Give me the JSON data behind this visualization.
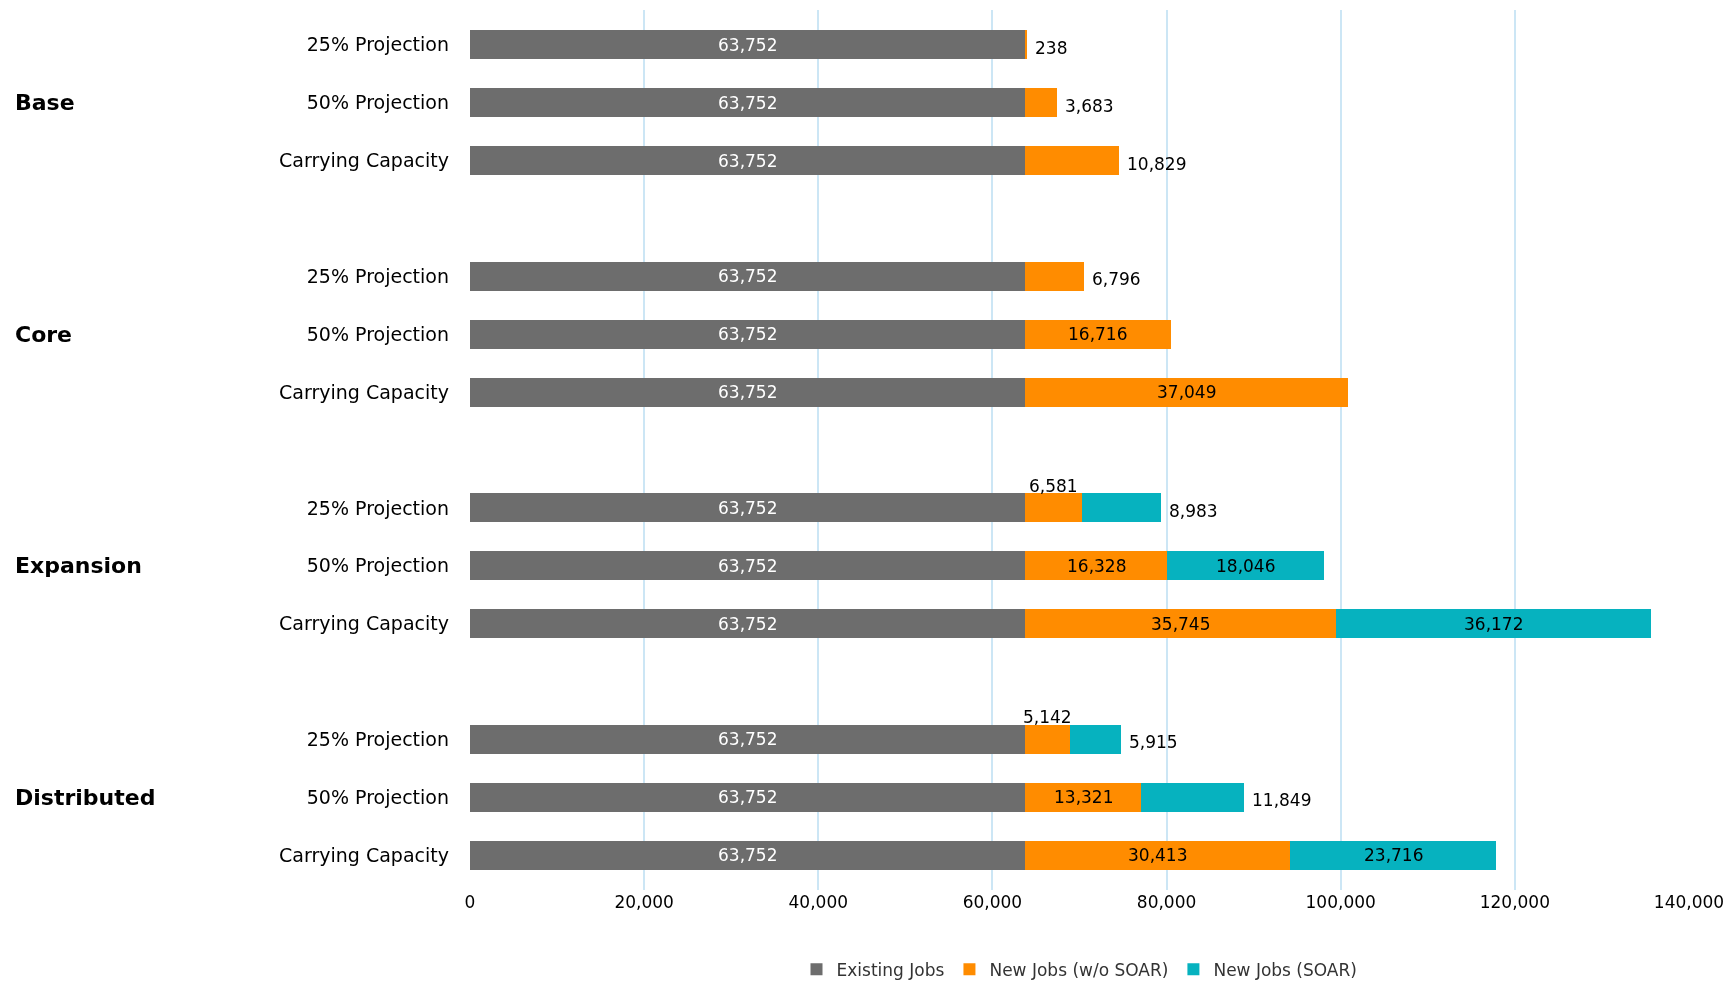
{
  "chart_data": {
    "type": "bar",
    "orientation": "horizontal",
    "stacked": true,
    "categories": [
      "25% Projection",
      "50% Projection",
      "Carrying Capacity",
      "25% Projection",
      "50% Projection",
      "Carrying Capacity",
      "25% Projection",
      "50% Projection",
      "Carrying Capacity",
      "25% Projection",
      "50% Projection",
      "Carrying Capacity"
    ],
    "series": [
      {
        "name": "Existing Jobs",
        "color": "#6d6d6d",
        "values": [
          63752,
          63752,
          63752,
          63752,
          63752,
          63752,
          63752,
          63752,
          63752,
          63752,
          63752,
          63752
        ],
        "value_labels": [
          "63,752",
          "63,752",
          "63,752",
          "63,752",
          "63,752",
          "63,752",
          "63,752",
          "63,752",
          "63,752",
          "63,752",
          "63,752",
          "63,752"
        ]
      },
      {
        "name": "New Jobs (w/o SOAR)",
        "color": "#ff8c00",
        "values": [
          238,
          3683,
          10829,
          6796,
          16716,
          37049,
          6581,
          16328,
          35745,
          5142,
          13321,
          30413
        ],
        "value_labels": [
          "238",
          "3,683",
          "10,829",
          "6,796",
          "16,716",
          "37,049",
          "6,581",
          "16,328",
          "35,745",
          "5,142",
          "13,321",
          "30,413"
        ]
      },
      {
        "name": "New Jobs (SOAR)",
        "color": "#06b2bf",
        "values": [
          null,
          null,
          null,
          null,
          null,
          null,
          8983,
          18046,
          36172,
          5915,
          11849,
          23716
        ],
        "value_labels": [
          null,
          null,
          null,
          null,
          null,
          null,
          "8,983",
          "18,046",
          "36,172",
          "5,915",
          "11,849",
          "23,716"
        ]
      }
    ],
    "annotations": [
      "Base",
      "Core",
      "Expansion",
      "Distributed"
    ],
    "xlim": [
      0,
      140000
    ],
    "xticks": [
      0,
      {
        "value": 20000,
        "label": "20,000"
      },
      {
        "value": 40000,
        "label": "40,000"
      },
      {
        "value": 60000,
        "label": "60,000"
      },
      {
        "value": 80000,
        "label": "80,000"
      },
      {
        "value": 100000,
        "label": "100,000"
      },
      {
        "value": 120000,
        "label": "120,000"
      },
      {
        "value": 140000,
        "label": "140,000"
      }
    ],
    "grid": "x",
    "legend": "bottom"
  }
}
